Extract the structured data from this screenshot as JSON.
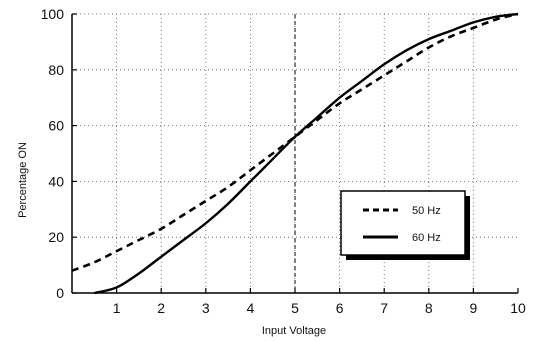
{
  "chart_data": {
    "type": "line",
    "xlabel": "Input Voltage",
    "ylabel": "Percentage ON",
    "xlim": [
      0,
      10
    ],
    "ylim": [
      0,
      100
    ],
    "x_ticks": [
      1,
      2,
      3,
      4,
      5,
      6,
      7,
      8,
      9,
      10
    ],
    "y_ticks": [
      0,
      20,
      40,
      60,
      80,
      100
    ],
    "grid": "dotted",
    "reference_line_x": 5,
    "legend_position": "lower-right",
    "series": [
      {
        "name": "50 Hz",
        "style": "dashed",
        "x": [
          0,
          0.5,
          1,
          1.5,
          2,
          2.5,
          3,
          3.5,
          4,
          4.5,
          5,
          5.5,
          6,
          6.5,
          7,
          7.5,
          8,
          8.5,
          9,
          9.5,
          10
        ],
        "y": [
          8,
          11,
          15,
          19,
          23,
          28,
          33,
          38,
          44,
          50,
          56,
          62,
          68,
          73,
          78,
          83,
          88,
          92,
          95,
          98,
          100
        ]
      },
      {
        "name": "60 Hz",
        "style": "solid",
        "x": [
          0.5,
          1,
          1.5,
          2,
          2.5,
          3,
          3.5,
          4,
          4.5,
          5,
          5.5,
          6,
          6.5,
          7,
          7.5,
          8,
          8.5,
          9,
          9.5,
          10
        ],
        "y": [
          0,
          2,
          7,
          13,
          19,
          25,
          32,
          40,
          48,
          56,
          63,
          70,
          76,
          82,
          87,
          91,
          94,
          97,
          99,
          100
        ]
      }
    ]
  }
}
